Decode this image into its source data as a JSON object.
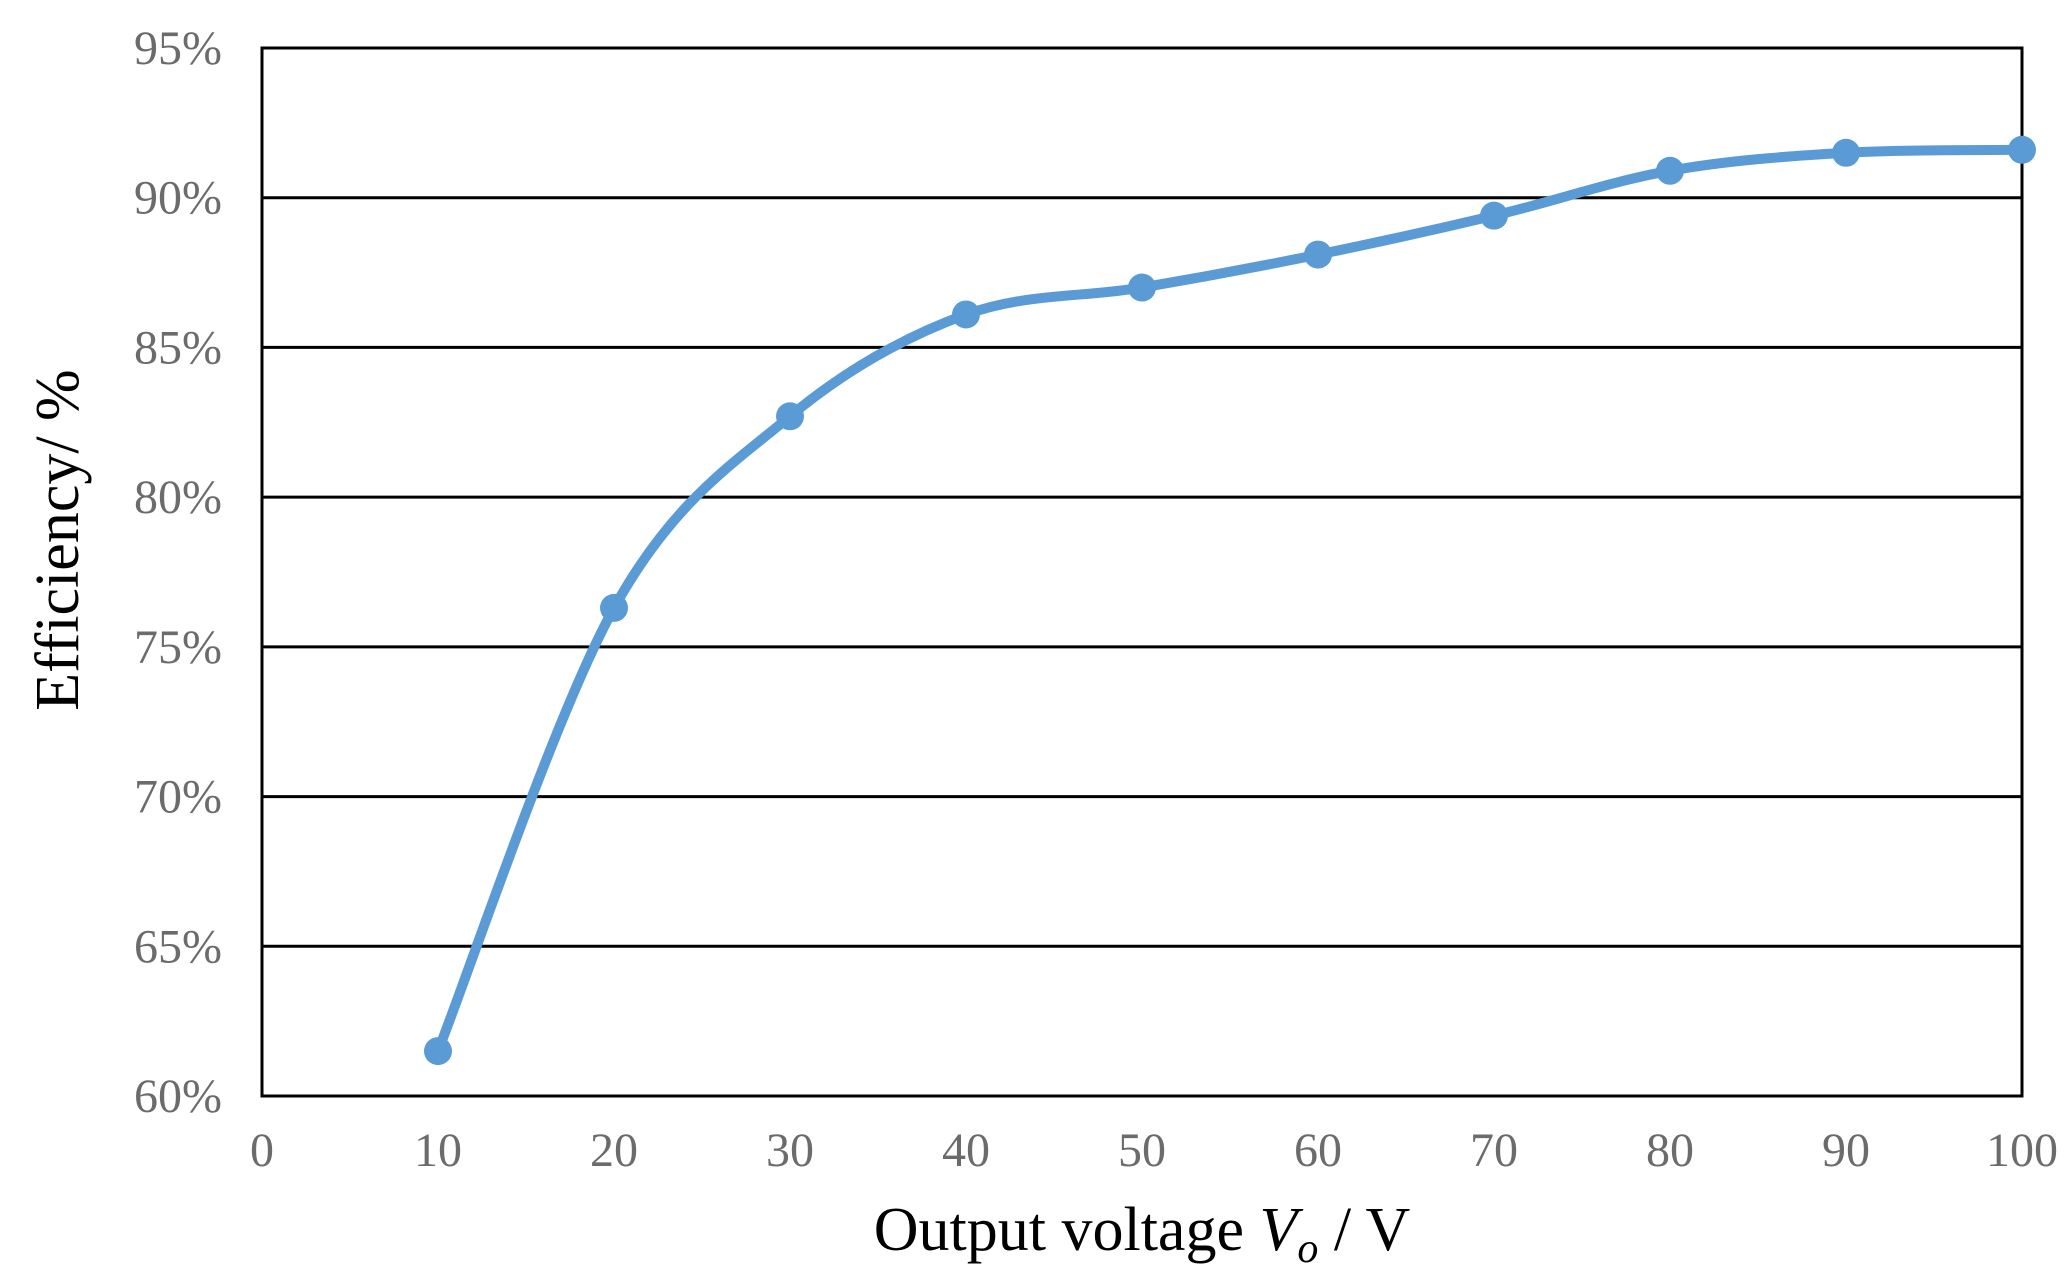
{
  "chart_data": {
    "type": "line",
    "title": "",
    "xlabel": {
      "prefix": "Output voltage ",
      "var": "V",
      "sub": "o",
      "suffix": " / V"
    },
    "ylabel": "Efficiency/ %",
    "xlim": [
      0,
      100
    ],
    "ylim": [
      60,
      95
    ],
    "x_ticks": [
      0,
      10,
      20,
      30,
      40,
      50,
      60,
      70,
      80,
      90,
      100
    ],
    "y_ticks": [
      60,
      65,
      70,
      75,
      80,
      85,
      90,
      95
    ],
    "y_tick_suffix": "%",
    "grid": "horizontal",
    "legend": "none",
    "smooth": true,
    "series": [
      {
        "color": "#5b9bd5",
        "x": [
          10,
          20,
          30,
          40,
          50,
          60,
          70,
          80,
          90,
          100
        ],
        "y": [
          61.5,
          76.3,
          82.7,
          86.1,
          87.0,
          88.1,
          89.4,
          90.9,
          91.5,
          91.6
        ]
      }
    ]
  }
}
